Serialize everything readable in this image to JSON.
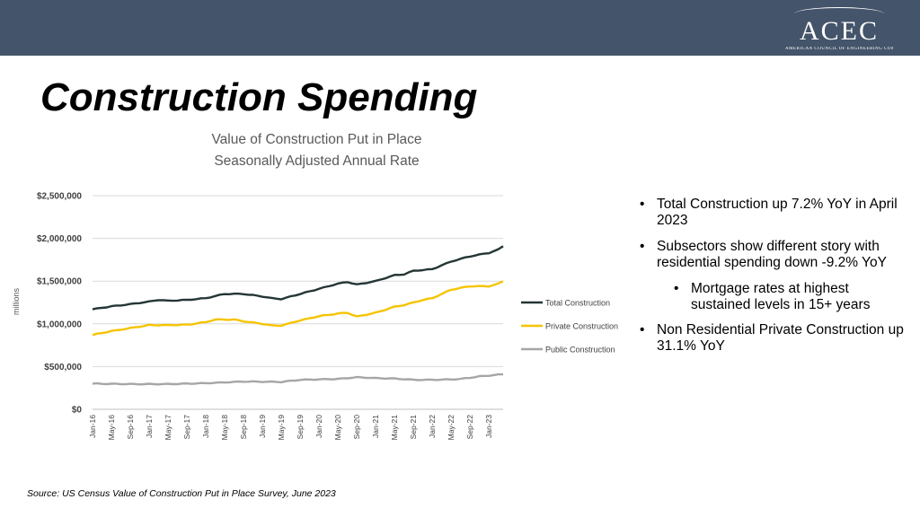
{
  "header": {
    "logo_text": "ACEC",
    "logo_tagline": "AMERICAN COUNCIL OF ENGINEERING COMPANIES"
  },
  "page": {
    "title": "Construction Spending",
    "source": "Source: US Census Value of Construction Put in Place Survey, June 2023"
  },
  "bullets": [
    {
      "text": "Total Construction up 7.2% YoY in April 2023"
    },
    {
      "text": "Subsectors show different story with residential spending down -9.2% YoY"
    },
    {
      "text": "Mortgage rates at highest sustained levels in 15+ years"
    },
    {
      "text": "Non Residential Private Construction up 31.1% YoY"
    }
  ],
  "chart_data": {
    "type": "line",
    "title": "Value of Construction Put in Place",
    "subtitle": "Seasonally Adjusted Annual Rate",
    "ylabel": "millions",
    "xlabel": "",
    "ylim": [
      0,
      2500000
    ],
    "yticks": [
      0,
      500000,
      1000000,
      1500000,
      2000000,
      2500000
    ],
    "ytick_labels": [
      "$0",
      "$500,000",
      "$1,000,000",
      "$1,500,000",
      "$2,000,000",
      "$2,500,000"
    ],
    "grid": true,
    "legend_position": "right",
    "x_tick_labels": [
      "Jan-16",
      "May-16",
      "Sep-16",
      "Jan-17",
      "May-17",
      "Sep-17",
      "Jan-18",
      "May-18",
      "Sep-18",
      "Jan-19",
      "May-19",
      "Sep-19",
      "Jan-20",
      "May-20",
      "Sep-20",
      "Jan-21",
      "May-21",
      "Sep-21",
      "Jan-22",
      "May-22",
      "Sep-22",
      "Jan-23"
    ],
    "x_tick_step_months": 4,
    "months": 88,
    "series": [
      {
        "name": "Total Construction",
        "color": "#243535",
        "anchors": [
          [
            0,
            1170000
          ],
          [
            4,
            1205000
          ],
          [
            8,
            1230000
          ],
          [
            12,
            1260000
          ],
          [
            14,
            1280000
          ],
          [
            16,
            1270000
          ],
          [
            20,
            1280000
          ],
          [
            24,
            1300000
          ],
          [
            28,
            1350000
          ],
          [
            32,
            1350000
          ],
          [
            36,
            1320000
          ],
          [
            38,
            1300000
          ],
          [
            40,
            1290000
          ],
          [
            44,
            1350000
          ],
          [
            48,
            1410000
          ],
          [
            52,
            1470000
          ],
          [
            54,
            1490000
          ],
          [
            56,
            1460000
          ],
          [
            60,
            1500000
          ],
          [
            64,
            1570000
          ],
          [
            66,
            1580000
          ],
          [
            68,
            1620000
          ],
          [
            72,
            1640000
          ],
          [
            76,
            1730000
          ],
          [
            80,
            1790000
          ],
          [
            82,
            1810000
          ],
          [
            84,
            1830000
          ],
          [
            86,
            1870000
          ],
          [
            87,
            1910000
          ]
        ]
      },
      {
        "name": "Private Construction",
        "color": "#f5c400",
        "anchors": [
          [
            0,
            870000
          ],
          [
            4,
            915000
          ],
          [
            8,
            950000
          ],
          [
            12,
            985000
          ],
          [
            16,
            985000
          ],
          [
            20,
            990000
          ],
          [
            24,
            1020000
          ],
          [
            26,
            1050000
          ],
          [
            30,
            1050000
          ],
          [
            32,
            1030000
          ],
          [
            36,
            1000000
          ],
          [
            38,
            980000
          ],
          [
            40,
            980000
          ],
          [
            44,
            1040000
          ],
          [
            48,
            1090000
          ],
          [
            52,
            1120000
          ],
          [
            54,
            1130000
          ],
          [
            56,
            1085000
          ],
          [
            60,
            1130000
          ],
          [
            64,
            1200000
          ],
          [
            66,
            1220000
          ],
          [
            70,
            1280000
          ],
          [
            72,
            1300000
          ],
          [
            76,
            1400000
          ],
          [
            80,
            1440000
          ],
          [
            82,
            1440000
          ],
          [
            84,
            1440000
          ],
          [
            86,
            1470000
          ],
          [
            87,
            1500000
          ]
        ]
      },
      {
        "name": "Public Construction",
        "color": "#a6a6a6",
        "anchors": [
          [
            0,
            300000
          ],
          [
            8,
            295000
          ],
          [
            16,
            295000
          ],
          [
            24,
            305000
          ],
          [
            32,
            325000
          ],
          [
            40,
            320000
          ],
          [
            44,
            345000
          ],
          [
            52,
            355000
          ],
          [
            56,
            375000
          ],
          [
            60,
            365000
          ],
          [
            64,
            360000
          ],
          [
            68,
            345000
          ],
          [
            72,
            345000
          ],
          [
            76,
            350000
          ],
          [
            78,
            355000
          ],
          [
            82,
            385000
          ],
          [
            86,
            405000
          ],
          [
            87,
            410000
          ]
        ]
      }
    ]
  }
}
